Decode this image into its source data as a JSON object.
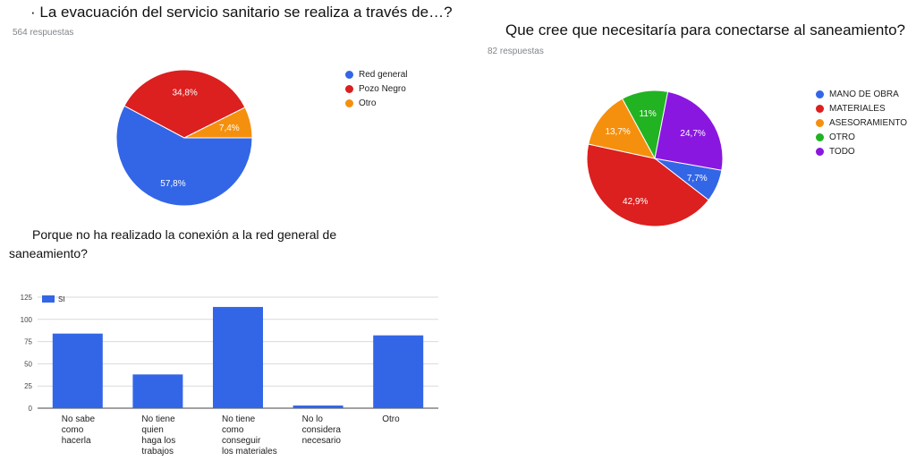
{
  "charts": {
    "q1": {
      "title": "· La evacuación del servicio sanitario se realiza a través de…?",
      "responses": "564 respuestas"
    },
    "q2": {
      "title": "Que cree que necesitaría para conectarse al saneamiento?",
      "responses": "82 respuestas"
    },
    "q3": {
      "title_line1": "Porque no ha realizado la conexión a la red general de",
      "title_line2": "saneamiento?"
    }
  },
  "chart_data": [
    {
      "type": "pie",
      "title": "· La evacuación del servicio sanitario se realiza a través de…?",
      "subtitle": "564 respuestas",
      "labels": [
        "Red general",
        "Pozo Negro",
        "Otro"
      ],
      "values": [
        57.8,
        34.8,
        7.4
      ],
      "value_labels": [
        "57,8%",
        "34,8%",
        "7,4%"
      ],
      "colors": [
        "#3366e6",
        "#dc1f1f",
        "#f5900e"
      ],
      "legend": "right"
    },
    {
      "type": "pie",
      "title": "Que cree que necesitaría para conectarse al saneamiento?",
      "subtitle": "82 respuestas",
      "labels": [
        "MANO DE OBRA",
        "MATERIALES",
        "ASESORAMIENTO",
        "OTRO",
        "TODO"
      ],
      "values": [
        7.7,
        42.9,
        13.7,
        11,
        24.7
      ],
      "value_labels": [
        "7,7%",
        "42,9%",
        "13,7%",
        "11%",
        "24,7%"
      ],
      "colors": [
        "#3366e6",
        "#dc1f1f",
        "#f5900e",
        "#22b322",
        "#8a17e0"
      ],
      "legend": "right"
    },
    {
      "type": "bar",
      "title": "Porque no ha realizado la conexión a la red general de saneamiento?",
      "categories": [
        [
          "No sabe",
          "como",
          "hacerla"
        ],
        [
          "No tiene",
          "quien",
          "haga los",
          "trabajos"
        ],
        [
          "No tiene",
          "como",
          "conseguir",
          "los materiales"
        ],
        [
          "No lo",
          "considera",
          "necesario"
        ],
        [
          "Otro"
        ]
      ],
      "series": [
        {
          "name": "SI",
          "values": [
            84,
            38,
            114,
            3,
            82
          ],
          "color": "#3366e6"
        }
      ],
      "ylim": [
        0,
        125
      ],
      "yticks": [
        0,
        25,
        50,
        75,
        100,
        125
      ],
      "grid": true,
      "legend": "top-left"
    }
  ]
}
